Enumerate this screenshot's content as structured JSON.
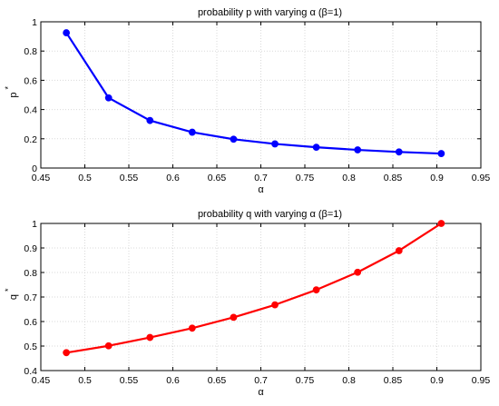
{
  "chart_data": [
    {
      "type": "line",
      "title": "probability p with varying α (β=1)",
      "xlabel": "α",
      "ylabel": "p",
      "ylabel_sup": "*",
      "xlim": [
        0.45,
        0.95
      ],
      "ylim": [
        0,
        1
      ],
      "xticks": [
        0.45,
        0.5,
        0.55,
        0.6,
        0.65,
        0.7,
        0.75,
        0.8,
        0.85,
        0.9,
        0.95
      ],
      "yticks": [
        0,
        0.2,
        0.4,
        0.6,
        0.8,
        1
      ],
      "xtick_labels": [
        "0.45",
        "0.5",
        "0.55",
        "0.6",
        "0.65",
        "0.7",
        "0.75",
        "0.8",
        "0.85",
        "0.9",
        "0.95"
      ],
      "ytick_labels": [
        "0",
        "0.2",
        "0.4",
        "0.6",
        "0.8",
        "1"
      ],
      "grid": true,
      "series": [
        {
          "color": "#0000ff",
          "x": [
            0.479,
            0.527,
            0.574,
            0.622,
            0.669,
            0.716,
            0.763,
            0.81,
            0.857,
            0.905
          ],
          "y": [
            0.925,
            0.48,
            0.325,
            0.245,
            0.197,
            0.165,
            0.142,
            0.124,
            0.11,
            0.099
          ]
        }
      ]
    },
    {
      "type": "line",
      "title": "probability q with varying α (β=1)",
      "xlabel": "α",
      "ylabel": "q",
      "ylabel_sup": "*",
      "xlim": [
        0.45,
        0.95
      ],
      "ylim": [
        0.4,
        1
      ],
      "xticks": [
        0.45,
        0.5,
        0.55,
        0.6,
        0.65,
        0.7,
        0.75,
        0.8,
        0.85,
        0.9,
        0.95
      ],
      "yticks": [
        0.4,
        0.5,
        0.6,
        0.7,
        0.8,
        0.9,
        1
      ],
      "xtick_labels": [
        "0.45",
        "0.5",
        "0.55",
        "0.6",
        "0.65",
        "0.7",
        "0.75",
        "0.8",
        "0.85",
        "0.9",
        "0.95"
      ],
      "ytick_labels": [
        "0.4",
        "0.5",
        "0.6",
        "0.7",
        "0.8",
        "0.9",
        "1"
      ],
      "grid": true,
      "series": [
        {
          "color": "#ff0000",
          "x": [
            0.479,
            0.527,
            0.574,
            0.622,
            0.669,
            0.716,
            0.763,
            0.81,
            0.857,
            0.905
          ],
          "y": [
            0.473,
            0.501,
            0.535,
            0.573,
            0.617,
            0.668,
            0.729,
            0.801,
            0.889,
            1.0
          ]
        }
      ]
    }
  ]
}
